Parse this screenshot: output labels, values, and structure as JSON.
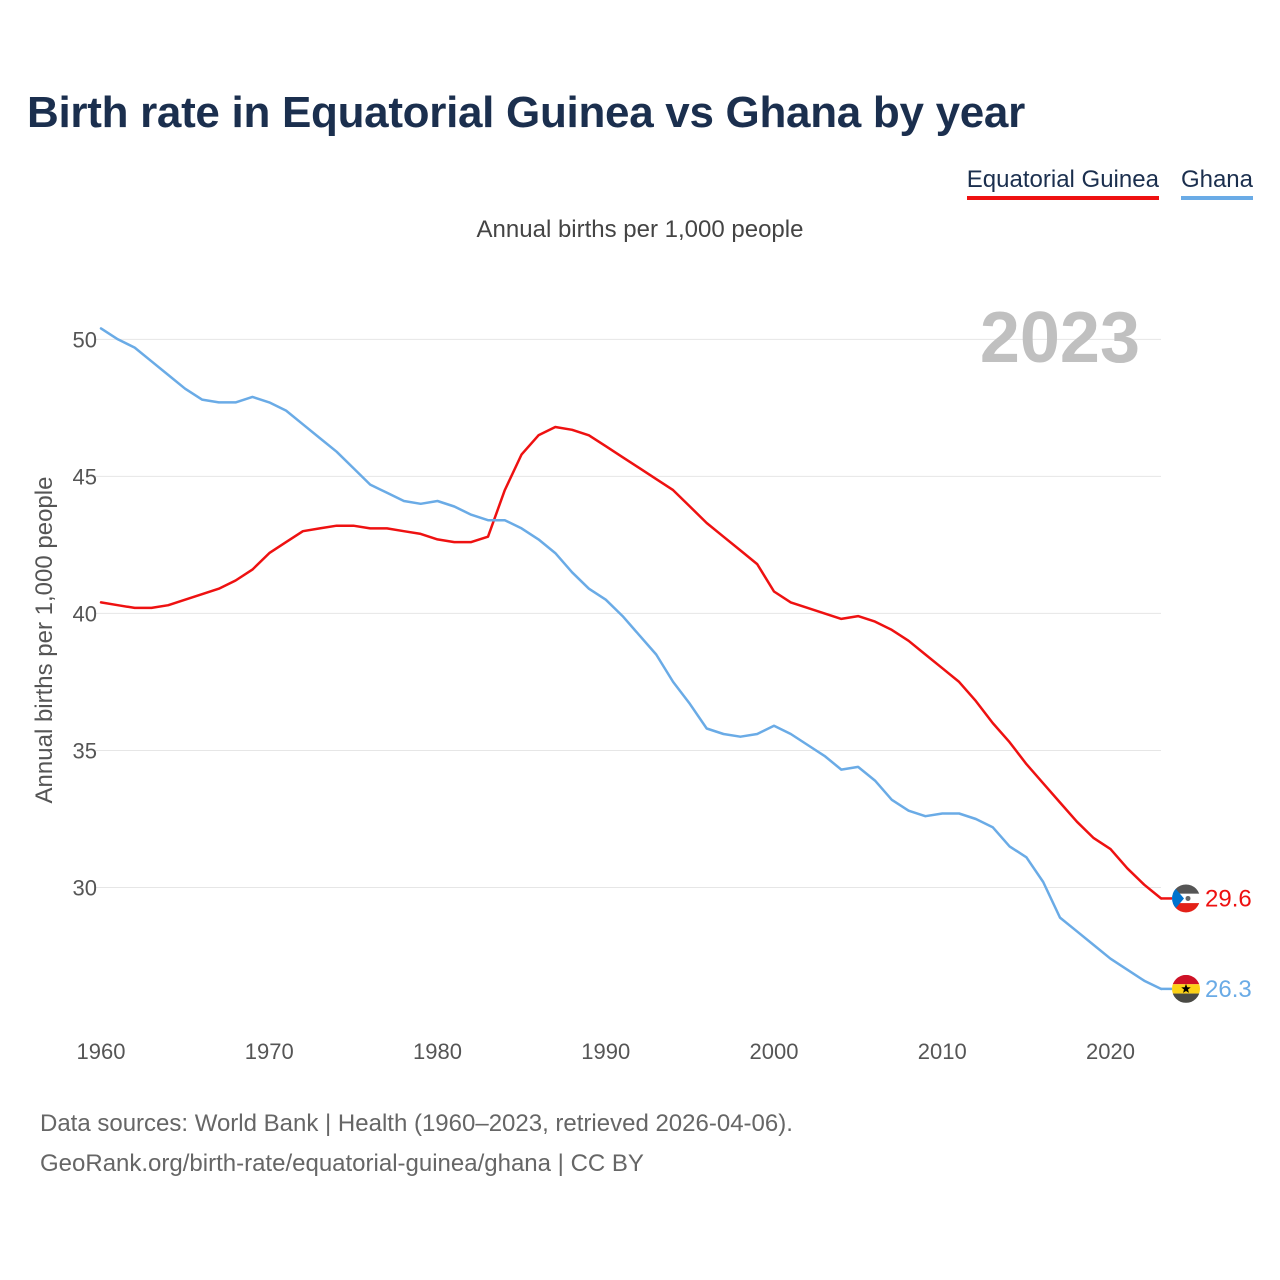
{
  "title": "Birth rate in Equatorial Guinea vs Ghana by year",
  "subtitle": "Annual births per 1,000 people",
  "footer": {
    "line1": "Data sources: World Bank | Health (1960–2023, retrieved 2026-04-06).",
    "line2": "GeoRank.org/birth-rate/equatorial-guinea/ghana | CC BY"
  },
  "chart_data": {
    "type": "line",
    "title": "Birth rate in Equatorial Guinea vs Ghana by year",
    "ylabel": "Annual births per 1,000 people",
    "xlabel": "",
    "year_label": "2023",
    "xlim": [
      1960,
      2023
    ],
    "ylim": [
      24.8,
      51.8
    ],
    "yticks": [
      30,
      35,
      40,
      45,
      50
    ],
    "xticks": [
      1960,
      1970,
      1980,
      1990,
      2000,
      2010,
      2020
    ],
    "grid": true,
    "legend_position": "top-right",
    "x": [
      1960,
      1961,
      1962,
      1963,
      1964,
      1965,
      1966,
      1967,
      1968,
      1969,
      1970,
      1971,
      1972,
      1973,
      1974,
      1975,
      1976,
      1977,
      1978,
      1979,
      1980,
      1981,
      1982,
      1983,
      1984,
      1985,
      1986,
      1987,
      1988,
      1989,
      1990,
      1991,
      1992,
      1993,
      1994,
      1995,
      1996,
      1997,
      1998,
      1999,
      2000,
      2001,
      2002,
      2003,
      2004,
      2005,
      2006,
      2007,
      2008,
      2009,
      2010,
      2011,
      2012,
      2013,
      2014,
      2015,
      2016,
      2017,
      2018,
      2019,
      2020,
      2021,
      2022,
      2023
    ],
    "series": [
      {
        "name": "Equatorial Guinea",
        "color": "#ee1111",
        "end_label": "29.6",
        "values": [
          40.4,
          40.3,
          40.2,
          40.2,
          40.3,
          40.5,
          40.7,
          40.9,
          41.2,
          41.6,
          42.2,
          42.6,
          43.0,
          43.1,
          43.2,
          43.2,
          43.1,
          43.1,
          43.0,
          42.9,
          42.7,
          42.6,
          42.6,
          42.8,
          44.5,
          45.8,
          46.5,
          46.8,
          46.7,
          46.5,
          46.1,
          45.7,
          45.3,
          44.9,
          44.5,
          43.9,
          43.3,
          42.8,
          42.3,
          41.8,
          40.8,
          40.4,
          40.2,
          40.0,
          39.8,
          39.9,
          39.7,
          39.4,
          39.0,
          38.5,
          38.0,
          37.5,
          36.8,
          36.0,
          35.3,
          34.5,
          33.8,
          33.1,
          32.4,
          31.8,
          31.4,
          30.7,
          30.1,
          29.6
        ]
      },
      {
        "name": "Ghana",
        "color": "#6aabe6",
        "end_label": "26.3",
        "values": [
          50.4,
          50.0,
          49.7,
          49.2,
          48.7,
          48.2,
          47.8,
          47.7,
          47.7,
          47.9,
          47.7,
          47.4,
          46.9,
          46.4,
          45.9,
          45.3,
          44.7,
          44.4,
          44.1,
          44.0,
          44.1,
          43.9,
          43.6,
          43.4,
          43.4,
          43.1,
          42.7,
          42.2,
          41.5,
          40.9,
          40.5,
          39.9,
          39.2,
          38.5,
          37.5,
          36.7,
          35.8,
          35.6,
          35.5,
          35.6,
          35.9,
          35.6,
          35.2,
          34.8,
          34.3,
          34.4,
          33.9,
          33.2,
          32.8,
          32.6,
          32.7,
          32.7,
          32.5,
          32.2,
          31.5,
          31.1,
          30.2,
          28.9,
          28.4,
          27.9,
          27.4,
          27.0,
          26.6,
          26.3
        ]
      }
    ]
  },
  "colors": {
    "title": "#1b2f4e",
    "grid": "#e6e6e6",
    "tick_text": "#555555",
    "year_watermark": "#c0c0c0",
    "flag_eq_guinea": [
      "#ffffff",
      "#3e9a00",
      "#e32118",
      "#0073ce"
    ],
    "flag_ghana": [
      "#ce1126",
      "#fcd116",
      "#006b3f",
      "#000000"
    ]
  }
}
